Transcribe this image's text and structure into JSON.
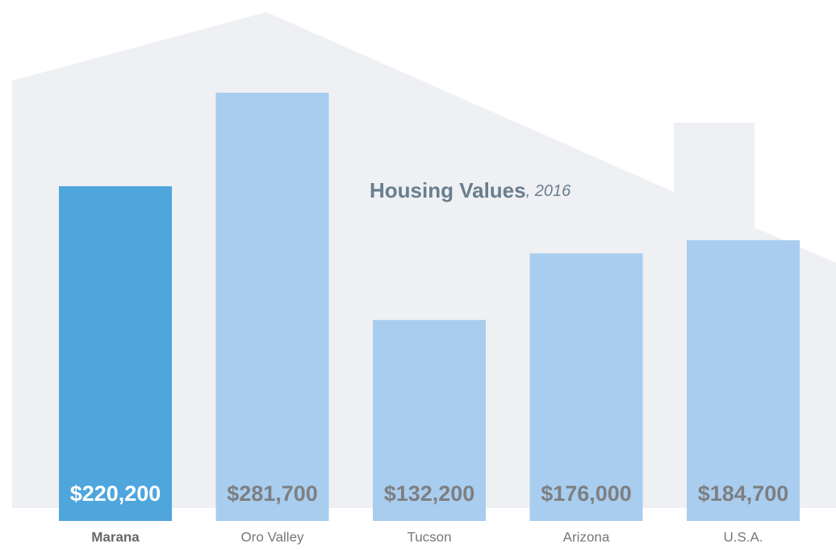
{
  "chart_data": {
    "type": "bar",
    "title": "Housing Values",
    "subtitle": ", 2016",
    "categories": [
      "Marana",
      "Oro Valley",
      "Tucson",
      "Arizona",
      "U.S.A."
    ],
    "values": [
      220200,
      281700,
      132200,
      176000,
      184700
    ],
    "value_labels": [
      "$220,200",
      "$281,700",
      "$132,200",
      "$176,000",
      "$184,700"
    ],
    "colors": [
      "#4ea6dc",
      "#a9cdee",
      "#a9cdee",
      "#a9cdee",
      "#a9cdee"
    ]
  }
}
